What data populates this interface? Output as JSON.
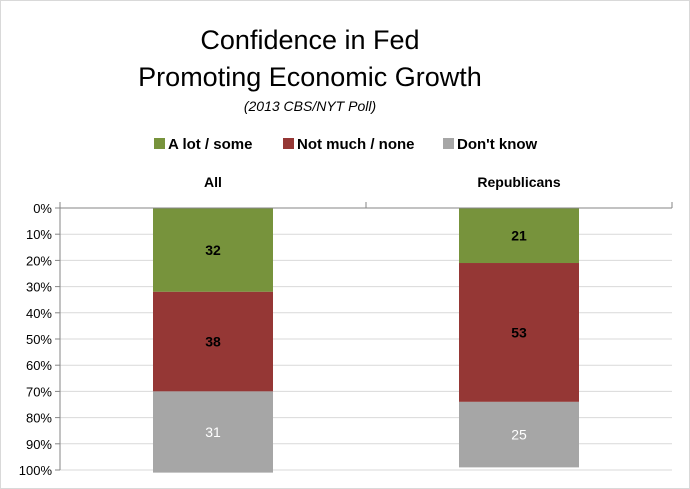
{
  "chart_data": {
    "type": "bar",
    "stacked": true,
    "title": "Confidence in Fed",
    "title_line2": "Promoting Economic Growth",
    "subtitle": "(2013 CBS/NYT Poll)",
    "categories": [
      "All",
      "Republicans"
    ],
    "series": [
      {
        "name": "A lot / some",
        "values": [
          32,
          21
        ],
        "color": "#77933C",
        "label_color": "#000000",
        "label_bold": true
      },
      {
        "name": "Not much / none",
        "values": [
          38,
          53
        ],
        "color": "#953735",
        "label_color": "#000000",
        "label_bold": true
      },
      {
        "name": "Don't know",
        "values": [
          31,
          25
        ],
        "color": "#A6A6A6",
        "label_color": "#ffffff",
        "label_bold": false
      }
    ],
    "y_ticks": [
      "0%",
      "10%",
      "20%",
      "30%",
      "40%",
      "50%",
      "60%",
      "70%",
      "80%",
      "90%",
      "100%"
    ],
    "ylim": [
      0,
      100
    ],
    "y_axis_reversed": true,
    "grid": true,
    "legend_position": "top",
    "category_labels_position": "top"
  }
}
